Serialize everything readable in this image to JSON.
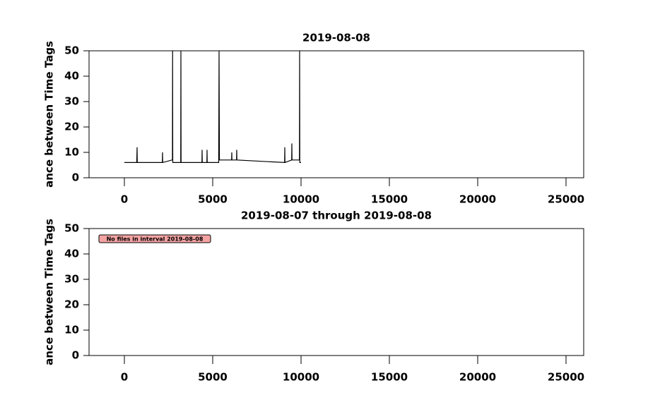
{
  "chart_data": [
    {
      "type": "line",
      "title": "2019-08-08",
      "ylabel": "ance between Time Tags",
      "xlim": [
        -2000,
        26000
      ],
      "xticks": [
        0,
        5000,
        10000,
        15000,
        20000,
        25000
      ],
      "ylim": [
        0,
        50
      ],
      "yticks": [
        0,
        10,
        20,
        30,
        40,
        50
      ],
      "color": "#000000",
      "x": [
        0,
        600,
        700,
        720,
        730,
        1000,
        2000,
        2150,
        2160,
        2170,
        2700,
        2720,
        2730,
        2740,
        3190,
        3200,
        3210,
        4390,
        4400,
        4410,
        4670,
        4680,
        4690,
        5340,
        5360,
        5380,
        6070,
        6080,
        6090,
        6350,
        6360,
        6370,
        9070,
        9080,
        9090,
        9470,
        9480,
        9490,
        9910,
        9920,
        9930,
        10000
      ],
      "values": [
        6,
        6,
        6,
        12,
        6,
        6,
        6,
        6,
        10,
        6,
        7,
        7,
        50,
        6,
        6,
        50,
        6,
        6,
        11,
        6,
        6,
        11,
        6,
        6,
        50,
        7,
        7,
        10,
        7,
        7,
        11,
        7,
        6,
        12,
        6,
        7,
        13.5,
        7,
        7,
        50,
        6,
        6
      ]
    },
    {
      "type": "line",
      "title": "2019-08-07 through 2019-08-08",
      "ylabel": "ance between Time Tags",
      "xlim": [
        -2000,
        26000
      ],
      "xticks": [
        0,
        5000,
        10000,
        15000,
        20000,
        25000
      ],
      "ylim": [
        0,
        50
      ],
      "yticks": [
        0,
        10,
        20,
        30,
        40,
        50
      ],
      "color": "#000000",
      "annotation": "No files in interval 2019-08-08"
    }
  ]
}
